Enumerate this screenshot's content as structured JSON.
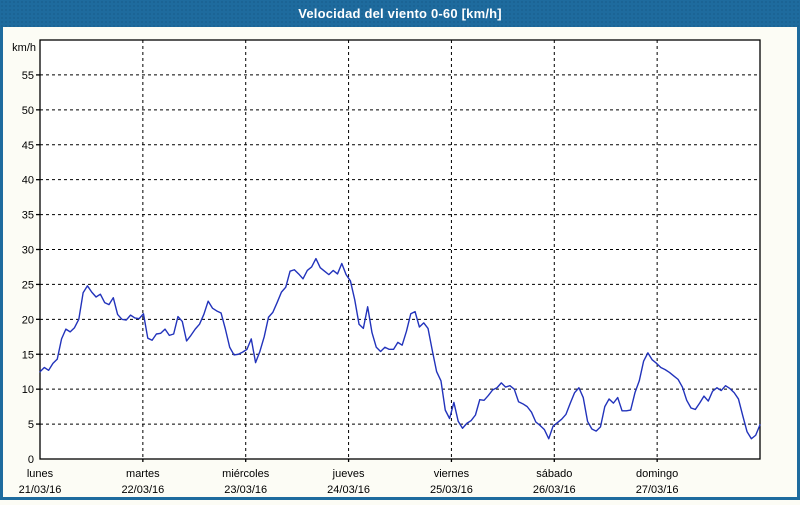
{
  "window": {
    "title": "Velocidad del viento 0-60 [km/h]"
  },
  "colors": {
    "frame": "#1e6b9e",
    "titlebar_bg": "#1e6b9e",
    "title_text": "#ffffff",
    "page_bg": "#fcfcf5",
    "plot_bg": "#ffffff",
    "grid": "#000000",
    "axis": "#000000",
    "label_text": "#000000",
    "line": "#2233bb"
  },
  "chart_data": {
    "type": "line",
    "title": "Velocidad del viento 0-60 [km/h]",
    "ylabel": "km/h",
    "ylim": [
      0,
      60
    ],
    "y_ticks": [
      0,
      5,
      10,
      15,
      20,
      25,
      30,
      35,
      40,
      45,
      50,
      55
    ],
    "grid": true,
    "legend": "none",
    "hours_per_day": 24,
    "days": [
      {
        "label": "lunes",
        "date": "21/03/16",
        "values": [
          12.5,
          13.1,
          12.7,
          13.7,
          14.3,
          17.2,
          18.6,
          18.2,
          18.8,
          20.0,
          23.8,
          24.8,
          23.9,
          23.2,
          23.6,
          22.4,
          22.1,
          23.1,
          20.7,
          20.0,
          19.9,
          20.6,
          20.2,
          20.1
        ]
      },
      {
        "label": "martes",
        "date": "22/03/16",
        "values": [
          20.8,
          17.3,
          17.0,
          17.9,
          18.0,
          18.6,
          17.7,
          17.9,
          20.4,
          19.7,
          16.9,
          17.7,
          18.6,
          19.3,
          20.7,
          22.6,
          21.6,
          21.2,
          20.9,
          18.6,
          16.0,
          14.9,
          15.0,
          15.3
        ]
      },
      {
        "label": "miércoles",
        "date": "23/03/16",
        "values": [
          15.7,
          17.2,
          13.8,
          15.4,
          17.5,
          20.3,
          21.0,
          22.4,
          23.9,
          24.6,
          26.9,
          27.1,
          26.5,
          25.8,
          27.0,
          27.5,
          28.7,
          27.4,
          26.9,
          26.4,
          27.0,
          26.5,
          28.0,
          26.4
        ]
      },
      {
        "label": "jueves",
        "date": "24/03/16",
        "values": [
          25.5,
          22.8,
          19.3,
          18.7,
          21.8,
          18.1,
          16.0,
          15.4,
          16.0,
          15.7,
          15.7,
          16.7,
          16.3,
          18.3,
          20.8,
          21.1,
          18.9,
          19.5,
          18.7,
          15.5,
          12.5,
          11.2,
          7.0,
          5.8
        ]
      },
      {
        "label": "viernes",
        "date": "25/03/16",
        "values": [
          8.1,
          5.4,
          4.4,
          5.1,
          5.5,
          6.3,
          8.5,
          8.4,
          9.1,
          9.9,
          10.2,
          10.9,
          10.3,
          10.5,
          10.0,
          8.2,
          7.9,
          7.5,
          6.7,
          5.3,
          4.8,
          4.2,
          2.9,
          4.7
        ]
      },
      {
        "label": "sábado",
        "date": "26/03/16",
        "values": [
          5.2,
          5.7,
          6.4,
          8.0,
          9.5,
          10.2,
          8.8,
          5.4,
          4.3,
          4.0,
          4.6,
          7.5,
          8.6,
          8.0,
          8.8,
          6.9,
          6.9,
          7.0,
          9.5,
          11.2,
          14.0,
          15.2,
          14.2,
          13.7
        ]
      },
      {
        "label": "domingo",
        "date": "27/03/16",
        "values": [
          13.1,
          12.8,
          12.4,
          11.9,
          11.4,
          10.3,
          8.4,
          7.3,
          7.1,
          8.0,
          9.0,
          8.3,
          9.7,
          10.2,
          9.8,
          10.5,
          10.1,
          9.5,
          8.6,
          6.2,
          3.9,
          2.9,
          3.4,
          4.9
        ]
      }
    ]
  }
}
